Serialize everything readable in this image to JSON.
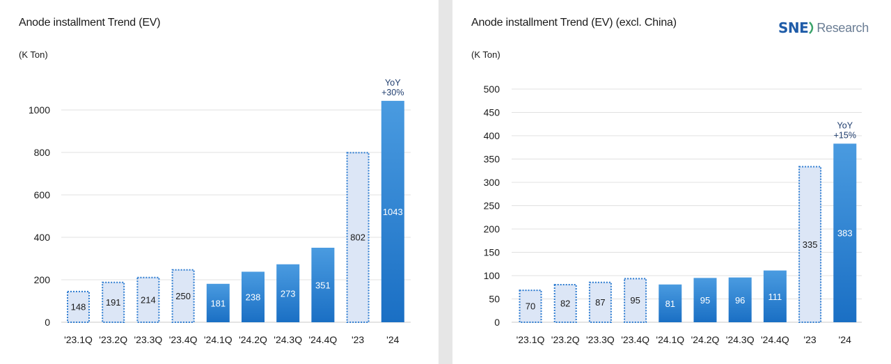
{
  "logo": {
    "brand": "SNE",
    "word": "Research",
    "brand_color": "#1f5ca8",
    "word_color": "#6a7d94"
  },
  "colors": {
    "actual_bar_top": "#4a9be0",
    "actual_bar_bottom": "#1a6fc4",
    "dotted_fill": "#dce6f6",
    "dotted_stroke": "#2a7ad0",
    "grid": "#e0e0e0",
    "yoy_text": "#1f3d6e",
    "background": "#e6e6e6"
  },
  "chart_data": [
    {
      "type": "bar",
      "title": "Anode installment Trend (EV)",
      "unit": "(K Ton)",
      "categories": [
        "'23.1Q",
        "'23.2Q",
        "'23.3Q",
        "'23.4Q",
        "'24.1Q",
        "'24.2Q",
        "'24.3Q",
        "'24.4Q",
        "'23",
        "'24"
      ],
      "values": [
        148,
        191,
        214,
        250,
        181,
        238,
        273,
        351,
        802,
        1043
      ],
      "styles": [
        "dotted",
        "dotted",
        "dotted",
        "dotted",
        "solid",
        "solid",
        "solid",
        "solid",
        "dotted",
        "solid"
      ],
      "ylim": [
        0,
        1000
      ],
      "yticks": [
        0,
        200,
        400,
        600,
        800,
        1000
      ],
      "grid": true,
      "annotation": {
        "category": "'24",
        "lines": [
          "YoY",
          "+30%"
        ]
      }
    },
    {
      "type": "bar",
      "title": "Anode installment Trend (EV) (excl. China)",
      "unit": "(K Ton)",
      "categories": [
        "'23.1Q",
        "'23.2Q",
        "'23.3Q",
        "'23.4Q",
        "'24.1Q",
        "'24.2Q",
        "'24.3Q",
        "'24.4Q",
        "'23",
        "'24"
      ],
      "values": [
        70,
        82,
        87,
        95,
        81,
        95,
        96,
        111,
        335,
        383
      ],
      "styles": [
        "dotted",
        "dotted",
        "dotted",
        "dotted",
        "solid",
        "solid",
        "solid",
        "solid",
        "dotted",
        "solid"
      ],
      "ylim": [
        0,
        500
      ],
      "yticks": [
        0,
        50,
        100,
        150,
        200,
        250,
        300,
        350,
        400,
        450,
        500
      ],
      "grid": true,
      "annotation": {
        "category": "'24",
        "lines": [
          "YoY",
          "+15%"
        ]
      }
    }
  ]
}
